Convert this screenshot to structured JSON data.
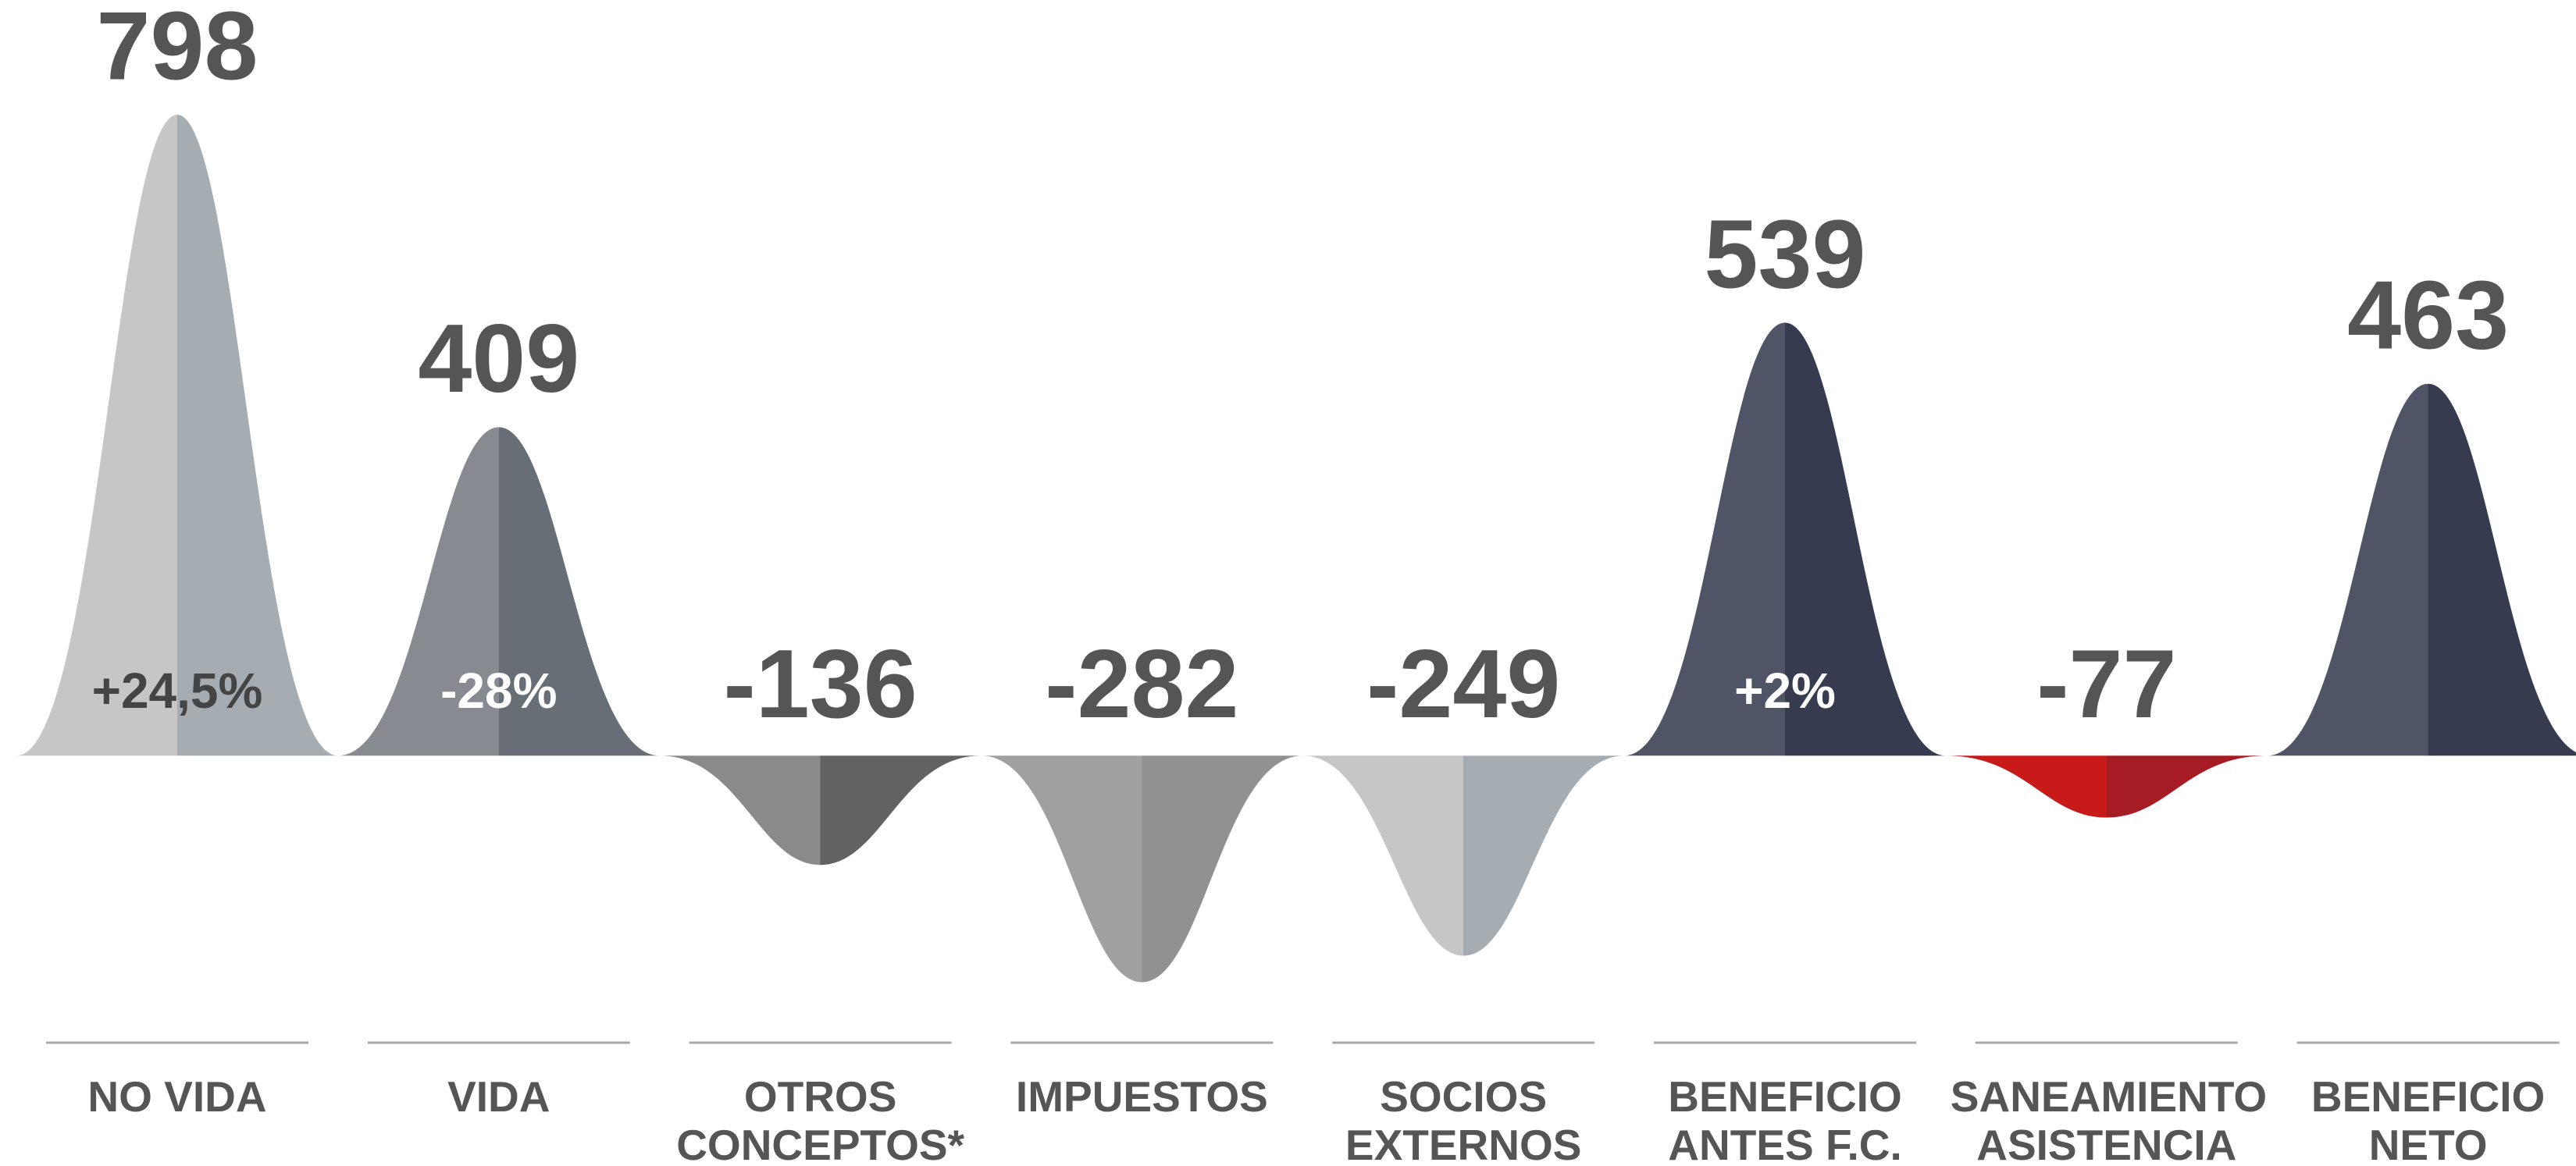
{
  "chart_data": {
    "type": "bell",
    "categories": [
      "NO VIDA",
      "VIDA",
      "OTROS CONCEPTOS*",
      "IMPUESTOS",
      "SOCIOS EXTERNOS",
      "BENEFICIO ANTES F.C.",
      "SANEAMIENTO ASISTENCIA",
      "BENEFICIO NETO"
    ],
    "values": [
      798,
      409,
      -136,
      -282,
      -249,
      539,
      -77,
      463
    ],
    "annotations": [
      "+24,5%",
      "-28%",
      null,
      null,
      null,
      "+2%",
      null,
      null
    ],
    "annotation_colors": [
      "#444444",
      "#ffffff",
      null,
      null,
      null,
      "#ffffff",
      null,
      null
    ],
    "colors": [
      "#c6c6c6",
      "#878b91",
      "#8a8a8a",
      "#a0a0a0",
      "#c6c6c6",
      "#4f5467",
      "#c91a1a",
      "#4f5467"
    ],
    "dark_colors": [
      "#a5acb2",
      "#686e76",
      "#626262",
      "#919191",
      "#a5acb2",
      "#363b4f",
      "#a51c24",
      "#363b4f"
    ],
    "ylim": [
      -300,
      900
    ]
  }
}
